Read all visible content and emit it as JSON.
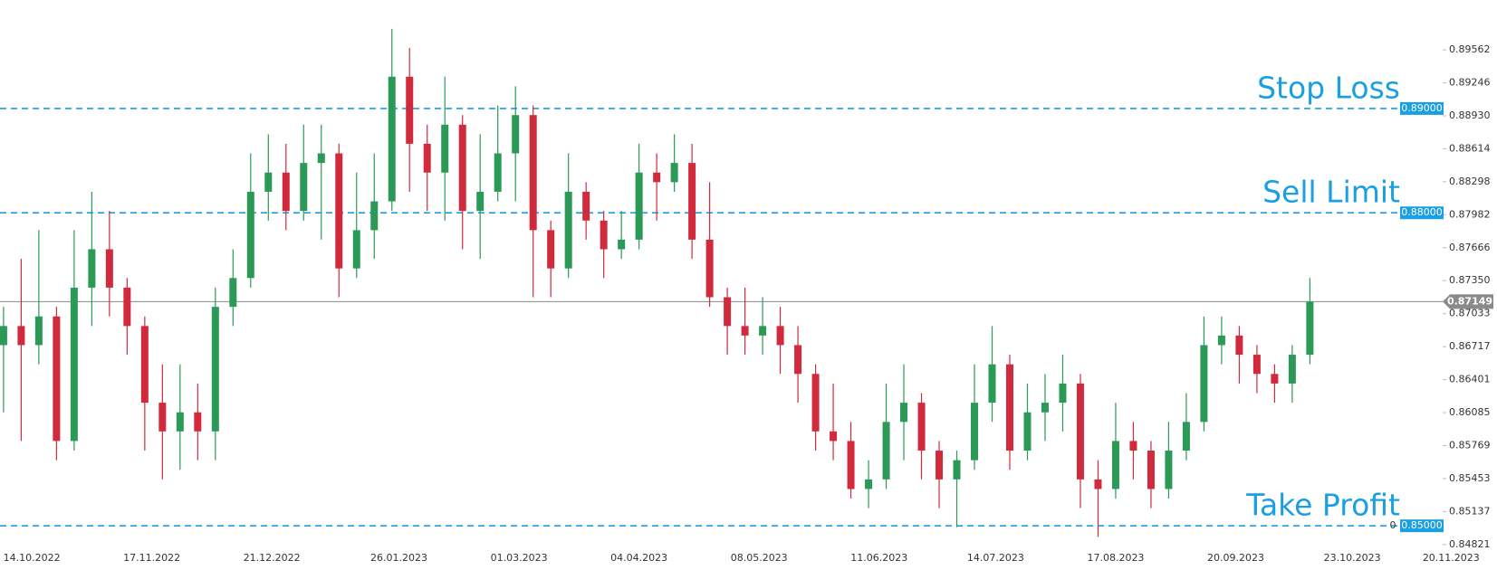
{
  "chart_data": {
    "type": "candlestick",
    "x": [
      "06.10.2022",
      "11.10.2022",
      "16.10.2022",
      "21.10.2022",
      "26.10.2022",
      "31.10.2022",
      "05.11.2022",
      "10.11.2022",
      "15.11.2022",
      "20.11.2022",
      "25.11.2022",
      "30.11.2022",
      "05.12.2022",
      "10.12.2022",
      "15.12.2022",
      "20.12.2022",
      "25.12.2022",
      "30.12.2022",
      "04.01.2023",
      "09.01.2023",
      "14.01.2023",
      "19.01.2023",
      "24.01.2023",
      "29.01.2023",
      "03.02.2023",
      "08.02.2023",
      "13.02.2023",
      "18.02.2023",
      "23.02.2023",
      "28.02.2023",
      "05.03.2023",
      "10.03.2023",
      "15.03.2023",
      "20.03.2023",
      "25.03.2023",
      "30.03.2023",
      "04.04.2023",
      "09.04.2023",
      "14.04.2023",
      "19.04.2023",
      "24.04.2023",
      "29.04.2023",
      "04.05.2023",
      "09.05.2023",
      "14.05.2023",
      "19.05.2023",
      "24.05.2023",
      "29.05.2023",
      "03.06.2023",
      "08.06.2023",
      "13.06.2023",
      "18.06.2023",
      "23.06.2023",
      "28.06.2023",
      "03.07.2023",
      "08.07.2023",
      "13.07.2023",
      "18.07.2023",
      "23.07.2023",
      "28.07.2023",
      "02.08.2023",
      "07.08.2023",
      "12.08.2023",
      "17.08.2023",
      "22.08.2023",
      "27.08.2023",
      "01.09.2023",
      "06.09.2023",
      "11.09.2023",
      "16.09.2023",
      "21.09.2023",
      "26.09.2023",
      "01.10.2023",
      "06.10.2023",
      "11.10.2023"
    ],
    "open": [
      0.86732,
      0.86915,
      0.86732,
      0.87007,
      0.85813,
      0.87283,
      0.87651,
      0.87283,
      0.86915,
      0.8618,
      0.85905,
      0.86088,
      0.85905,
      0.87099,
      0.87375,
      0.88202,
      0.88386,
      0.88018,
      0.88478,
      0.8857,
      0.87467,
      0.87834,
      0.8811,
      0.89305,
      0.88662,
      0.88386,
      0.88845,
      0.88018,
      0.88202,
      0.8857,
      0.88937,
      0.87834,
      0.87467,
      0.88202,
      0.87926,
      0.87651,
      0.87743,
      0.88386,
      0.88294,
      0.88478,
      0.87743,
      0.87191,
      0.86915,
      0.86824,
      0.86915,
      0.86732,
      0.86456,
      0.85905,
      0.85813,
      0.85353,
      0.85445,
      0.85996,
      0.8618,
      0.85721,
      0.85445,
      0.85629,
      0.8618,
      0.86548,
      0.85721,
      0.86088,
      0.8618,
      0.86364,
      0.85445,
      0.85353,
      0.85813,
      0.85721,
      0.85353,
      0.85721,
      0.85996,
      0.86732,
      0.86824,
      0.8664,
      0.86456,
      0.86364,
      0.8664
    ],
    "high": [
      0.87099,
      0.87559,
      0.87834,
      0.87099,
      0.87834,
      0.88202,
      0.88018,
      0.87375,
      0.87007,
      0.86548,
      0.86548,
      0.86364,
      0.87283,
      0.87651,
      0.8857,
      0.88753,
      0.88662,
      0.88845,
      0.88845,
      0.88662,
      0.88386,
      0.8857,
      0.89764,
      0.8958,
      0.88845,
      0.89305,
      0.88937,
      0.88753,
      0.89029,
      0.89213,
      0.89029,
      0.87926,
      0.8857,
      0.88294,
      0.88018,
      0.88018,
      0.88662,
      0.8857,
      0.88753,
      0.88662,
      0.88294,
      0.87283,
      0.87283,
      0.87191,
      0.87099,
      0.86915,
      0.86548,
      0.86364,
      0.85996,
      0.85629,
      0.86364,
      0.86548,
      0.86272,
      0.85813,
      0.85721,
      0.86548,
      0.86915,
      0.8664,
      0.86364,
      0.86456,
      0.8664,
      0.86456,
      0.85629,
      0.8618,
      0.85996,
      0.85813,
      0.85996,
      0.86272,
      0.87007,
      0.87007,
      0.86915,
      0.86732,
      0.86548,
      0.86732,
      0.87375
    ],
    "low": [
      0.86088,
      0.85813,
      0.86548,
      0.85629,
      0.85721,
      0.86915,
      0.87007,
      0.8664,
      0.85721,
      0.85445,
      0.85537,
      0.85629,
      0.85629,
      0.86915,
      0.87283,
      0.87926,
      0.87834,
      0.87926,
      0.87743,
      0.87191,
      0.87375,
      0.87559,
      0.88018,
      0.88202,
      0.88018,
      0.87926,
      0.87651,
      0.87559,
      0.8811,
      0.8811,
      0.87191,
      0.87191,
      0.87375,
      0.87743,
      0.87375,
      0.87559,
      0.87651,
      0.87926,
      0.88202,
      0.87559,
      0.87099,
      0.8664,
      0.8664,
      0.8664,
      0.86456,
      0.8618,
      0.85721,
      0.85629,
      0.85261,
      0.85169,
      0.85353,
      0.85629,
      0.85445,
      0.85169,
      0.84986,
      0.85537,
      0.85996,
      0.85537,
      0.85629,
      0.85813,
      0.85905,
      0.85169,
      0.84894,
      0.85261,
      0.85445,
      0.85169,
      0.85261,
      0.85629,
      0.85905,
      0.86548,
      0.86364,
      0.86272,
      0.8618,
      0.8618,
      0.86548
    ],
    "close": [
      0.86915,
      0.86732,
      0.87007,
      0.85813,
      0.87283,
      0.87651,
      0.87283,
      0.86915,
      0.8618,
      0.85905,
      0.86088,
      0.85905,
      0.87099,
      0.87375,
      0.88202,
      0.88386,
      0.88018,
      0.88478,
      0.8857,
      0.87467,
      0.87834,
      0.8811,
      0.89305,
      0.88662,
      0.88386,
      0.88845,
      0.88018,
      0.88202,
      0.8857,
      0.88937,
      0.87834,
      0.87467,
      0.88202,
      0.87926,
      0.87651,
      0.87743,
      0.88386,
      0.88294,
      0.88478,
      0.87743,
      0.87191,
      0.86915,
      0.86824,
      0.86915,
      0.86732,
      0.86456,
      0.85905,
      0.85813,
      0.85353,
      0.85445,
      0.85996,
      0.8618,
      0.85721,
      0.85445,
      0.85629,
      0.8618,
      0.86548,
      0.85721,
      0.86088,
      0.8618,
      0.86364,
      0.85445,
      0.85353,
      0.85813,
      0.85721,
      0.85353,
      0.85721,
      0.85996,
      0.86732,
      0.86824,
      0.8664,
      0.86456,
      0.86364,
      0.8664,
      0.87149
    ],
    "up_color": "#2a9a56",
    "down_color": "#d12a3c",
    "xlim": [
      "05.10.2022",
      "03.12.2023"
    ],
    "xticks": [
      "14.10.2022",
      "17.11.2022",
      "21.12.2022",
      "26.01.2023",
      "01.03.2023",
      "04.04.2023",
      "08.05.2023",
      "11.06.2023",
      "14.07.2023",
      "17.08.2023",
      "20.09.2023",
      "23.10.2023",
      "20.11.2023"
    ],
    "ylim": [
      0.8475,
      0.9004
    ],
    "yticks": [
      0.89562,
      0.89246,
      {
        "value": 0.8893,
        "label": "0.88930"
      },
      0.88614,
      0.88298,
      0.87982,
      0.87666,
      {
        "value": 0.8735,
        "label": "0.87350"
      },
      0.87033,
      0.86717,
      0.86401,
      0.86085,
      0.85769,
      0.85453,
      0.85137,
      0.84821
    ],
    "current_price": 0.87149,
    "current_color": "#8a8a8a",
    "level_color": "#1a9fe3",
    "levels": [
      {
        "name": "Stop Loss",
        "price": {
          "value": 0.89,
          "label": "0.89000"
        }
      },
      {
        "name": "Sell Limit",
        "price": {
          "value": 0.88,
          "label": "0.88000"
        }
      },
      {
        "name": "Take Profit",
        "price": {
          "value": 0.85,
          "label": "0.85000"
        },
        "badge": "0"
      }
    ]
  }
}
